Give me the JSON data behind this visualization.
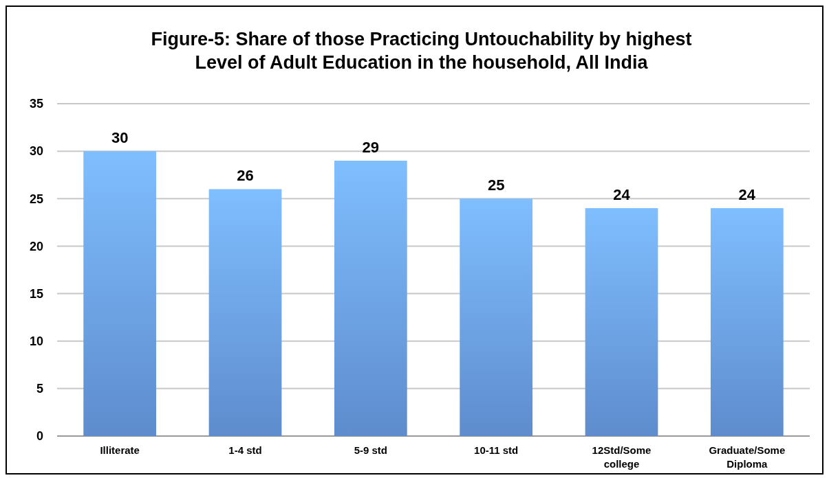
{
  "chart_data": {
    "type": "bar",
    "title": "Figure-5: Share of those Practicing Untouchability by highest Level of Adult Education in the household, All India",
    "categories": [
      "Illiterate",
      "1-4 std",
      "5-9 std",
      "10-11 std",
      "12Std/Some college",
      "Graduate/Some Diploma"
    ],
    "values": [
      30,
      26,
      29,
      25,
      24,
      24
    ],
    "color": "#6a9fe8",
    "ylim": [
      0,
      35
    ],
    "yticks": [
      0,
      5,
      10,
      15,
      20,
      25,
      30,
      35
    ],
    "grid": "y",
    "data_labels": true
  }
}
